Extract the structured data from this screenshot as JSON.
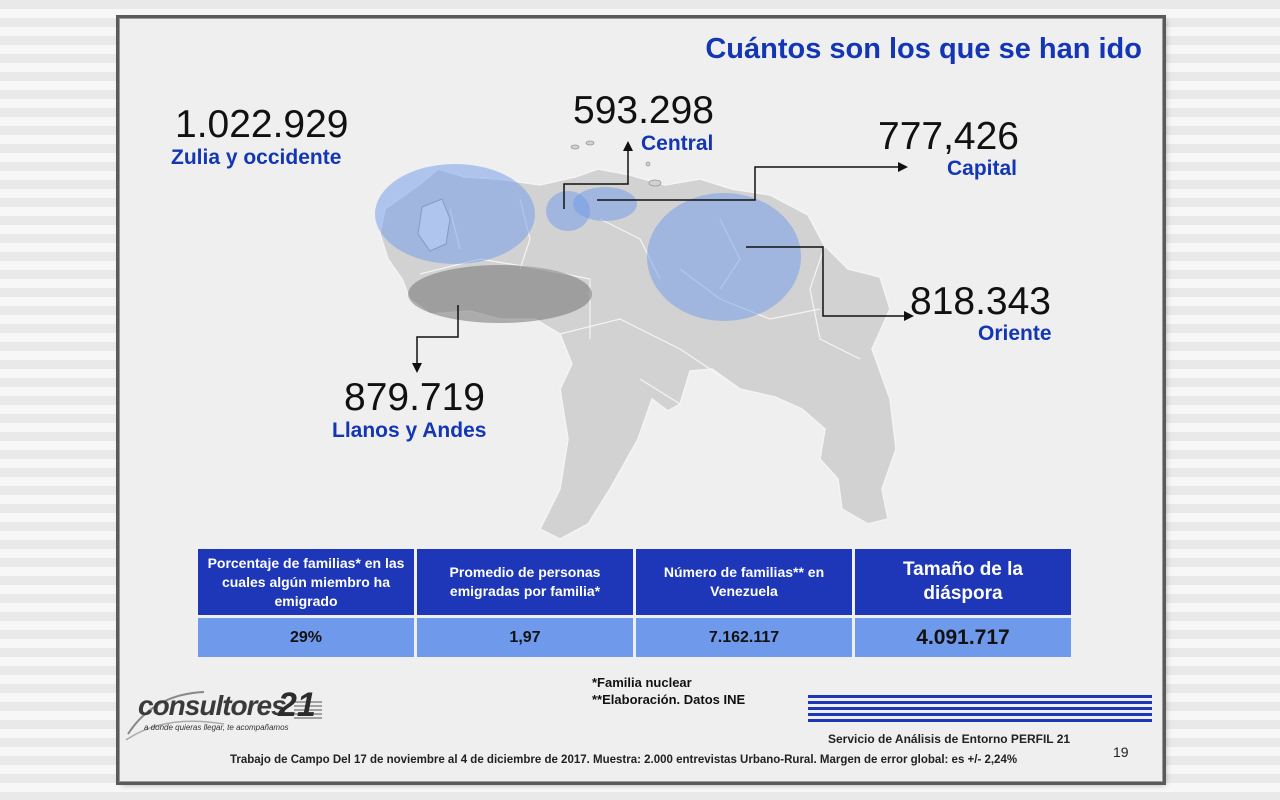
{
  "title": "Cuántos son los que se han ido",
  "regions": {
    "zulia": {
      "value": "1.022.929",
      "label": "Zulia y occidente"
    },
    "central": {
      "value": "593.298",
      "label": "Central"
    },
    "capital": {
      "value": "777,426",
      "label": "Capital"
    },
    "oriente": {
      "value": "818.343",
      "label": "Oriente"
    },
    "llanos": {
      "value": "879.719",
      "label": "Llanos y Andes"
    }
  },
  "table": {
    "headers": [
      "Porcentaje de familias* en las cuales algún miembro ha emigrado",
      "Promedio de personas emigradas por familia*",
      "Número de familias** en Venezuela",
      "Tamaño de la diáspora"
    ],
    "values": [
      "29%",
      "1,97",
      "7.162.117",
      "4.091.717"
    ]
  },
  "notes": {
    "note1": "*Familia nuclear",
    "note2": "**Elaboración. Datos INE"
  },
  "logo": {
    "name": "consultores",
    "number": "21",
    "tagline": "a donde quieras llegar, te acompañamos"
  },
  "service": "Servicio de Análisis de Entorno PERFIL 21",
  "page_number": "19",
  "footer": "Trabajo de Campo Del 17 de noviembre al 4 de diciembre de 2017. Muestra: 2.000 entrevistas Urbano-Rural. Margen de error global: es +/- 2,24%",
  "colors": {
    "accent": "#1336b5",
    "header_bg": "#1d37b8",
    "row_bg": "#6f99ea"
  }
}
